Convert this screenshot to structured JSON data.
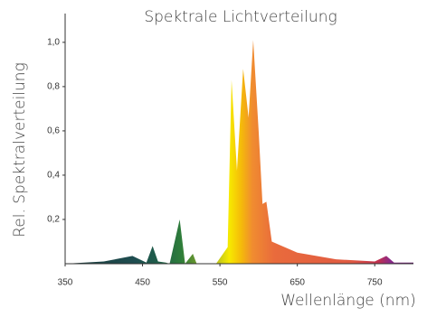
{
  "chart_data": {
    "type": "area",
    "title": "Spektrale Lichtverteilung",
    "x_label": "Wellenlänge (nm)",
    "y_label": "Rel. Spektralverteilung",
    "x": [
      350,
      400,
      437,
      455,
      463,
      470,
      480,
      485,
      498,
      505,
      515,
      520,
      545,
      560,
      565,
      572,
      580,
      587,
      593,
      600,
      605,
      610,
      617,
      650,
      700,
      750,
      765,
      775,
      800
    ],
    "values": [
      0,
      0.01,
      0.035,
      0.005,
      0.08,
      0.01,
      0.005,
      0,
      0.2,
      0,
      0.045,
      0,
      0,
      0.075,
      0.83,
      0.42,
      0.88,
      0.66,
      1.01,
      0.6,
      0.27,
      0.28,
      0.1,
      0.05,
      0.02,
      0.01,
      0.035,
      0.005,
      0.005
    ],
    "color_stops": [
      {
        "x": 350,
        "color": "#1b3b3b"
      },
      {
        "x": 440,
        "color": "#1e4d50"
      },
      {
        "x": 470,
        "color": "#1f5e4a"
      },
      {
        "x": 500,
        "color": "#2e7d3a"
      },
      {
        "x": 525,
        "color": "#7a9e2a"
      },
      {
        "x": 550,
        "color": "#c9cc18"
      },
      {
        "x": 562,
        "color": "#f6ea00"
      },
      {
        "x": 578,
        "color": "#f5b90a"
      },
      {
        "x": 592,
        "color": "#f08c30"
      },
      {
        "x": 620,
        "color": "#e96b3c"
      },
      {
        "x": 720,
        "color": "#e05a42"
      },
      {
        "x": 755,
        "color": "#c0304f"
      },
      {
        "x": 770,
        "color": "#8a2a8a"
      },
      {
        "x": 800,
        "color": "#6a2070"
      }
    ],
    "xlim": [
      350,
      800
    ],
    "xticks": [
      350,
      450,
      550,
      650,
      750
    ],
    "ylim": [
      0,
      1.13
    ],
    "yticks": [
      {
        "value": 0.2,
        "label": "0,2"
      },
      {
        "value": 0.4,
        "label": "0,4"
      },
      {
        "value": 0.6,
        "label": "0,6"
      },
      {
        "value": 0.8,
        "label": "0,8"
      },
      {
        "value": 1.0,
        "label": "1,0"
      }
    ],
    "grid": false
  }
}
